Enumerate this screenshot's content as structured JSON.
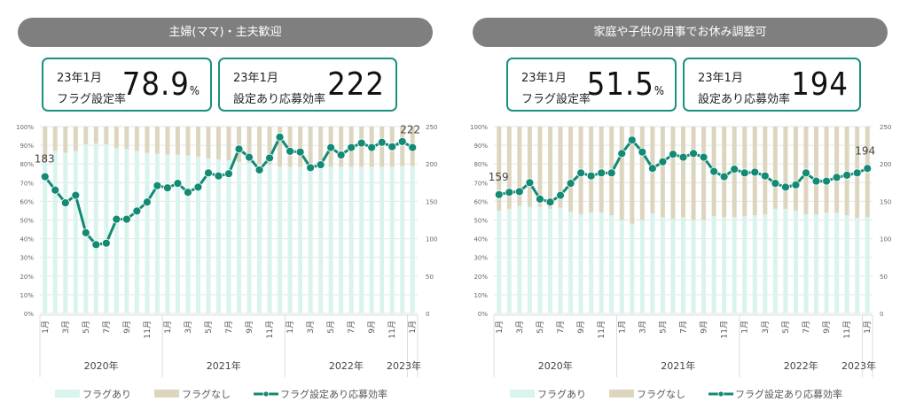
{
  "panels": [
    {
      "title": "主婦(ママ)・主夫歓迎",
      "kpi_rate": {
        "period": "23年1月",
        "label": "フラグ設定率",
        "value": "78.9",
        "unit": "%"
      },
      "kpi_eff": {
        "period": "23年1月",
        "label": "設定あり応募効率",
        "value": "222"
      }
    },
    {
      "title": "家庭や子供の用事でお休み調整可",
      "kpi_rate": {
        "period": "23年1月",
        "label": "フラグ設定率",
        "value": "51.5",
        "unit": "%"
      },
      "kpi_eff": {
        "period": "23年1月",
        "label": "設定あり応募効率",
        "value": "194"
      }
    }
  ],
  "colors": {
    "flag_on": "#d9f4ee",
    "flag_off": "#ddd6bf",
    "line": "#128a74",
    "pill": "#7f7f7f",
    "kpi_border": "#1a9080"
  },
  "chart_data": [
    {
      "type": "bar+line",
      "stacked": true,
      "categories": [
        "1月",
        "2月",
        "3月",
        "4月",
        "5月",
        "6月",
        "7月",
        "8月",
        "9月",
        "10月",
        "11月",
        "12月",
        "1月",
        "2月",
        "3月",
        "4月",
        "5月",
        "6月",
        "7月",
        "8月",
        "9月",
        "10月",
        "11月",
        "12月",
        "1月",
        "2月",
        "3月",
        "4月",
        "5月",
        "6月",
        "7月",
        "8月",
        "9月",
        "10月",
        "11月",
        "12月",
        "1月"
      ],
      "tick_labels": [
        "1月",
        "",
        "3月",
        "",
        "5月",
        "",
        "7月",
        "",
        "9月",
        "",
        "11月",
        "",
        "1月",
        "",
        "3月",
        "",
        "5月",
        "",
        "7月",
        "",
        "9月",
        "",
        "11月",
        "",
        "1月",
        "",
        "3月",
        "",
        "5月",
        "",
        "7月",
        "",
        "9月",
        "",
        "11月",
        "",
        "1月"
      ],
      "years": [
        {
          "label": "2020年",
          "count": 12
        },
        {
          "label": "2021年",
          "count": 12
        },
        {
          "label": "2022年",
          "count": 12
        },
        {
          "label": "2023年",
          "count": 1
        }
      ],
      "y_left": {
        "min": 0,
        "max": 100,
        "ticks": [
          "0%",
          "10%",
          "20%",
          "30%",
          "40%",
          "50%",
          "60%",
          "70%",
          "80%",
          "90%",
          "100%"
        ]
      },
      "y_right": {
        "min": 0,
        "max": 250,
        "ticks": [
          "0",
          "50",
          "100",
          "150",
          "200",
          "250"
        ]
      },
      "grid": true,
      "legend": {
        "position": "bottom",
        "items": [
          "フラグあり",
          "フラグなし",
          "フラグ設定あり応募効率"
        ]
      },
      "series": [
        {
          "name": "フラグあり",
          "axis": "left",
          "type": "bar",
          "values": [
            82,
            87,
            86,
            87,
            90.5,
            91,
            90.5,
            88.5,
            88,
            87,
            86,
            85.5,
            85,
            85,
            84.5,
            84,
            83,
            82.5,
            82,
            81,
            80.5,
            80,
            79.5,
            78.5,
            78.5,
            78.5,
            78.5,
            78.5,
            78.5,
            78.5,
            78.5,
            78.5,
            78.5,
            78.5,
            78.5,
            78.8,
            78.9
          ]
        },
        {
          "name": "フラグなし",
          "axis": "left",
          "type": "bar",
          "values": [
            18,
            13,
            14,
            13,
            9.5,
            9,
            9.5,
            11.5,
            12,
            13,
            14,
            14.5,
            15,
            15,
            15.5,
            16,
            17,
            17.5,
            18,
            19,
            19.5,
            20,
            20.5,
            21.5,
            21.5,
            21.5,
            21.5,
            21.5,
            21.5,
            21.5,
            21.5,
            21.5,
            21.5,
            21.5,
            21.5,
            21.2,
            21.1
          ]
        },
        {
          "name": "フラグ設定あり応募効率",
          "axis": "right",
          "type": "line",
          "values": [
            183,
            165,
            148,
            158,
            108,
            92,
            94,
            126,
            126,
            137,
            149,
            171,
            168,
            174,
            162,
            169,
            188,
            184,
            187,
            220,
            209,
            192,
            208,
            236,
            217,
            216,
            195,
            199,
            222,
            212,
            222,
            228,
            222,
            229,
            223,
            230,
            222
          ],
          "data_labels": {
            "first": "183",
            "last": "222"
          }
        }
      ]
    },
    {
      "type": "bar+line",
      "stacked": true,
      "categories": [
        "1月",
        "2月",
        "3月",
        "4月",
        "5月",
        "6月",
        "7月",
        "8月",
        "9月",
        "10月",
        "11月",
        "12月",
        "1月",
        "2月",
        "3月",
        "4月",
        "5月",
        "6月",
        "7月",
        "8月",
        "9月",
        "10月",
        "11月",
        "12月",
        "1月",
        "2月",
        "3月",
        "4月",
        "5月",
        "6月",
        "7月",
        "8月",
        "9月",
        "10月",
        "11月",
        "12月",
        "1月"
      ],
      "tick_labels": [
        "1月",
        "",
        "3月",
        "",
        "5月",
        "",
        "7月",
        "",
        "9月",
        "",
        "11月",
        "",
        "1月",
        "",
        "3月",
        "",
        "5月",
        "",
        "7月",
        "",
        "9月",
        "",
        "11月",
        "",
        "1月",
        "",
        "3月",
        "",
        "5月",
        "",
        "7月",
        "",
        "9月",
        "",
        "11月",
        "",
        "1月"
      ],
      "years": [
        {
          "label": "2020年",
          "count": 12
        },
        {
          "label": "2021年",
          "count": 12
        },
        {
          "label": "2022年",
          "count": 12
        },
        {
          "label": "2023年",
          "count": 1
        }
      ],
      "y_left": {
        "min": 0,
        "max": 100,
        "ticks": [
          "0%",
          "10%",
          "20%",
          "30%",
          "40%",
          "50%",
          "60%",
          "70%",
          "80%",
          "90%",
          "100%"
        ]
      },
      "y_right": {
        "min": 0,
        "max": 250,
        "ticks": [
          "0",
          "50",
          "100",
          "150",
          "200",
          "250"
        ]
      },
      "grid": true,
      "legend": {
        "position": "bottom",
        "items": [
          "フラグあり",
          "フラグなし",
          "フラグ設定あり応募効率"
        ]
      },
      "series": [
        {
          "name": "フラグあり",
          "axis": "left",
          "type": "bar",
          "values": [
            55,
            56,
            57.5,
            57,
            57,
            56,
            56.5,
            54.5,
            53,
            54,
            54,
            52.5,
            50,
            48,
            50,
            53.5,
            51.5,
            50.5,
            51.5,
            50,
            50,
            52,
            51.5,
            51.5,
            52,
            52.5,
            53,
            56,
            56,
            55,
            53,
            53,
            54,
            54,
            52.5,
            51,
            51.5
          ]
        },
        {
          "name": "フラグなし",
          "axis": "left",
          "type": "bar",
          "values": [
            45,
            44,
            42.5,
            43,
            43,
            44,
            43.5,
            45.5,
            47,
            46,
            46,
            47.5,
            50,
            52,
            50,
            46.5,
            48.5,
            49.5,
            48.5,
            50,
            50,
            48,
            48.5,
            48.5,
            48,
            47.5,
            47,
            44,
            44,
            45,
            47,
            47,
            46,
            46,
            47.5,
            49,
            48.5
          ]
        },
        {
          "name": "フラグ設定あり応募効率",
          "axis": "right",
          "type": "line",
          "values": [
            159,
            162,
            163,
            175,
            153,
            149,
            158,
            174,
            188,
            184,
            188,
            188,
            214,
            232,
            216,
            194,
            203,
            213,
            209,
            214,
            209,
            190,
            183,
            193,
            188,
            189,
            184,
            174,
            169,
            172,
            188,
            177,
            177,
            182,
            185,
            188,
            194
          ],
          "data_labels": {
            "first": "159",
            "last": "194"
          }
        }
      ]
    }
  ]
}
